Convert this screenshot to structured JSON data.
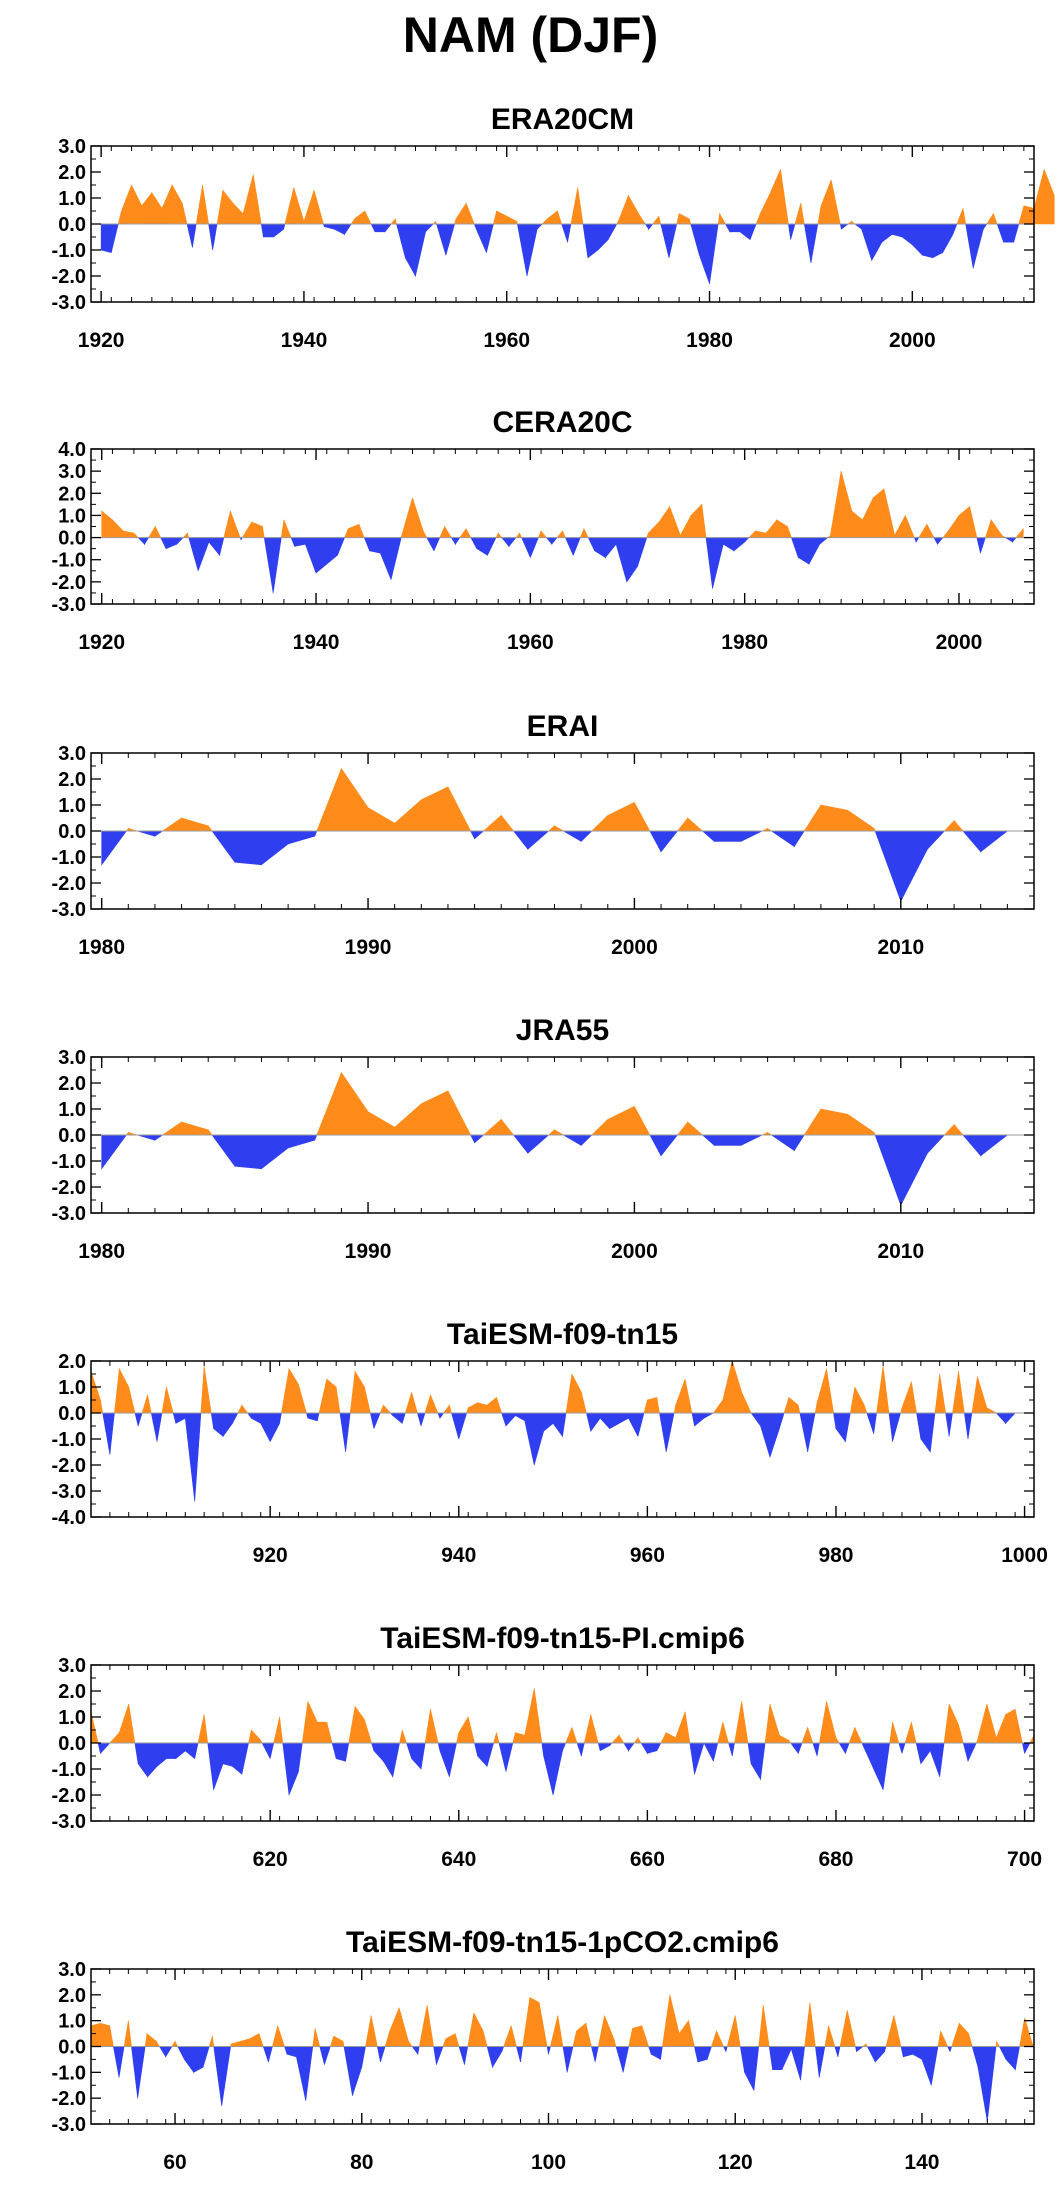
{
  "title": "NAM (DJF)",
  "colors": {
    "positive": "#ff8c1a",
    "negative": "#2f3ff0",
    "axis": "#000000",
    "zero_line": "#9a9a9a"
  },
  "chart_data": [
    {
      "type": "area",
      "title": "ERA20CM",
      "xlabel": "",
      "ylabel": "",
      "xlim": [
        1919,
        2012
      ],
      "ylim": [
        -3,
        3
      ],
      "xticks": [
        1920,
        1940,
        1960,
        1980,
        2000
      ],
      "yticks": [
        "3.0",
        "2.0",
        "1.0",
        "0.0",
        "-1.0",
        "-2.0",
        "-3.0"
      ],
      "x_start": 1920,
      "values": [
        -1.0,
        -1.1,
        0.5,
        1.5,
        0.7,
        1.2,
        0.6,
        1.5,
        0.8,
        -0.9,
        1.5,
        -1.0,
        1.3,
        0.8,
        0.4,
        1.9,
        -0.5,
        -0.5,
        -0.2,
        1.4,
        0.1,
        1.3,
        -0.1,
        -0.2,
        -0.4,
        0.2,
        0.5,
        -0.3,
        -0.3,
        0.2,
        -1.3,
        -2.0,
        -0.3,
        0.1,
        -1.2,
        0.2,
        0.8,
        -0.2,
        -1.1,
        0.5,
        0.3,
        0.1,
        -2.0,
        -0.2,
        0.2,
        0.5,
        -0.7,
        1.4,
        -1.3,
        -1.0,
        -0.6,
        0.1,
        1.1,
        0.4,
        -0.2,
        0.3,
        -1.3,
        0.4,
        0.2,
        -1.2,
        -2.3,
        0.4,
        -0.3,
        -0.3,
        -0.6,
        0.4,
        1.2,
        2.1,
        -0.6,
        0.8,
        -1.5,
        0.7,
        1.7,
        -0.2,
        0.1,
        -0.2,
        -1.4,
        -0.7,
        -0.4,
        -0.5,
        -0.8,
        -1.2,
        -1.3,
        -1.1,
        -0.4,
        0.6,
        -1.7,
        -0.2,
        0.4,
        -0.7,
        -0.7,
        0.7,
        0.6,
        2.1,
        1.1
      ]
    },
    {
      "type": "area",
      "title": "CERA20C",
      "xlabel": "",
      "ylabel": "",
      "xlim": [
        1919,
        2007
      ],
      "ylim": [
        -3,
        4
      ],
      "xticks": [
        1920,
        1940,
        1960,
        1980,
        2000
      ],
      "yticks": [
        "4.0",
        "3.0",
        "2.0",
        "1.0",
        "0.0",
        "-1.0",
        "-2.0",
        "-3.0"
      ],
      "x_start": 1920,
      "values": [
        1.2,
        0.8,
        0.3,
        0.2,
        -0.3,
        0.5,
        -0.5,
        -0.3,
        0.2,
        -1.5,
        -0.2,
        -0.8,
        1.2,
        -0.1,
        0.7,
        0.5,
        -2.5,
        0.8,
        -0.4,
        -0.3,
        -1.6,
        -1.2,
        -0.8,
        0.4,
        0.6,
        -0.6,
        -0.7,
        -1.9,
        0.1,
        1.8,
        0.3,
        -0.6,
        0.5,
        -0.3,
        0.4,
        -0.5,
        -0.8,
        0.2,
        -0.4,
        0.2,
        -0.9,
        0.3,
        -0.3,
        0.3,
        -0.8,
        0.4,
        -0.6,
        -0.9,
        -0.3,
        -2.0,
        -1.3,
        0.2,
        0.7,
        1.4,
        0.1,
        1.0,
        1.5,
        -2.3,
        -0.3,
        -0.6,
        -0.2,
        0.3,
        0.2,
        0.8,
        0.5,
        -0.9,
        -1.2,
        -0.3,
        0.1,
        3.0,
        1.2,
        0.8,
        1.8,
        2.2,
        0.1,
        1.0,
        -0.2,
        0.6,
        -0.3,
        0.3,
        1.0,
        1.4,
        -0.7,
        0.8,
        0.1,
        -0.2,
        0.4
      ]
    },
    {
      "type": "area",
      "title": "ERAI",
      "xlabel": "",
      "ylabel": "",
      "xlim": [
        1979.6,
        2015
      ],
      "ylim": [
        -3,
        3
      ],
      "xticks": [
        1980,
        1990,
        2000,
        2010
      ],
      "yticks": [
        "3.0",
        "2.0",
        "1.0",
        "0.0",
        "-1.0",
        "-2.0",
        "-3.0"
      ],
      "x_start": 1980,
      "values": [
        -1.3,
        0.1,
        -0.2,
        0.5,
        0.2,
        -1.2,
        -1.3,
        -0.5,
        -0.2,
        2.4,
        0.9,
        0.3,
        1.2,
        1.7,
        -0.3,
        0.6,
        -0.7,
        0.2,
        -0.4,
        0.6,
        1.1,
        -0.8,
        0.5,
        -0.4,
        -0.4,
        0.1,
        -0.6,
        1.0,
        0.8,
        0.1,
        -2.7,
        -0.7,
        0.4,
        -0.8,
        0.0
      ]
    },
    {
      "type": "area",
      "title": "JRA55",
      "xlabel": "",
      "ylabel": "",
      "xlim": [
        1979.6,
        2015
      ],
      "ylim": [
        -3,
        3
      ],
      "xticks": [
        1980,
        1990,
        2000,
        2010
      ],
      "yticks": [
        "3.0",
        "2.0",
        "1.0",
        "0.0",
        "-1.0",
        "-2.0",
        "-3.0"
      ],
      "x_start": 1980,
      "values": [
        -1.3,
        0.1,
        -0.2,
        0.5,
        0.2,
        -1.2,
        -1.3,
        -0.5,
        -0.2,
        2.4,
        0.9,
        0.3,
        1.2,
        1.7,
        -0.3,
        0.6,
        -0.7,
        0.2,
        -0.4,
        0.6,
        1.1,
        -0.8,
        0.5,
        -0.4,
        -0.4,
        0.1,
        -0.6,
        1.0,
        0.8,
        0.1,
        -2.7,
        -0.7,
        0.4,
        -0.8,
        0.0
      ]
    },
    {
      "type": "area",
      "title": "TaiESM-f09-tn15",
      "xlabel": "",
      "ylabel": "",
      "xlim": [
        901,
        1001
      ],
      "ylim": [
        -4,
        2
      ],
      "xticks": [
        920,
        940,
        960,
        980,
        1000
      ],
      "yticks": [
        "2.0",
        "1.0",
        "0.0",
        "-1.0",
        "-2.0",
        "-3.0",
        "-4.0"
      ],
      "x_start": 901,
      "values": [
        1.6,
        0.5,
        -1.6,
        1.7,
        1.0,
        -0.5,
        0.7,
        -1.1,
        1.0,
        -0.4,
        -0.2,
        -3.4,
        1.8,
        -0.6,
        -0.9,
        -0.4,
        0.3,
        -0.2,
        -0.4,
        -1.1,
        -0.4,
        1.7,
        1.1,
        -0.2,
        -0.3,
        1.3,
        1.0,
        -1.5,
        1.6,
        1.0,
        -0.6,
        0.3,
        -0.1,
        -0.4,
        0.8,
        -0.5,
        0.7,
        -0.2,
        0.3,
        -1.0,
        0.2,
        0.4,
        0.3,
        0.6,
        -0.5,
        -0.1,
        -0.3,
        -2.0,
        -0.7,
        -0.4,
        -0.9,
        1.5,
        0.8,
        -0.7,
        -0.2,
        -0.6,
        -0.4,
        -0.2,
        -0.9,
        0.5,
        0.6,
        -1.5,
        0.3,
        1.3,
        -0.5,
        -0.2,
        0.0,
        0.5,
        2.0,
        0.8,
        0.0,
        -0.5,
        -1.7,
        -0.6,
        0.6,
        0.3,
        -1.5,
        0.4,
        1.7,
        -0.6,
        -1.1,
        1.0,
        0.3,
        -0.8,
        1.8,
        -1.1,
        0.2,
        1.2,
        -1.0,
        -1.5,
        1.5,
        -0.9,
        1.6,
        -1.0,
        1.4,
        0.2,
        0.0,
        -0.4,
        0.0,
        0.0
      ]
    },
    {
      "type": "area",
      "title": "TaiESM-f09-tn15-PI.cmip6",
      "xlabel": "",
      "ylabel": "",
      "xlim": [
        601,
        701
      ],
      "ylim": [
        -3,
        3
      ],
      "xticks": [
        620,
        640,
        660,
        680,
        700
      ],
      "yticks": [
        "3.0",
        "2.0",
        "1.0",
        "0.0",
        "-1.0",
        "-2.0",
        "-3.0"
      ],
      "x_start": 601,
      "values": [
        1.2,
        -0.4,
        0.0,
        0.4,
        1.5,
        -0.8,
        -1.3,
        -0.9,
        -0.6,
        -0.6,
        -0.3,
        -0.6,
        1.1,
        -1.8,
        -0.8,
        -0.9,
        -1.2,
        0.5,
        0.1,
        -0.6,
        1.0,
        -2.0,
        -1.1,
        1.6,
        0.8,
        0.8,
        -0.6,
        -0.7,
        1.4,
        0.9,
        -0.3,
        -0.7,
        -1.3,
        0.5,
        -0.6,
        -1.0,
        1.3,
        -0.3,
        -1.3,
        0.4,
        1.0,
        -0.5,
        -0.9,
        0.4,
        -1.1,
        0.4,
        0.3,
        2.1,
        -0.5,
        -2.0,
        -0.3,
        0.6,
        -0.5,
        1.1,
        -0.3,
        -0.1,
        0.3,
        -0.3,
        0.2,
        -0.4,
        -0.3,
        0.4,
        0.2,
        1.2,
        -1.2,
        0.0,
        -0.7,
        0.8,
        -0.5,
        1.6,
        -0.8,
        -1.4,
        1.5,
        0.3,
        0.1,
        -0.4,
        0.6,
        -0.5,
        1.6,
        0.2,
        -0.4,
        0.6,
        -0.2,
        -1.0,
        -1.8,
        0.8,
        -0.4,
        0.8,
        -0.8,
        -0.3,
        -1.3,
        1.5,
        0.7,
        -0.7,
        0.1,
        1.5,
        0.2,
        1.1,
        1.3,
        -0.4,
        0.3
      ]
    },
    {
      "type": "area",
      "title": "TaiESM-f09-tn15-1pCO2.cmip6",
      "xlabel": "",
      "ylabel": "",
      "xlim": [
        51,
        152
      ],
      "ylim": [
        -3,
        3
      ],
      "xticks": [
        60,
        80,
        100,
        120,
        140
      ],
      "yticks": [
        "3.0",
        "2.0",
        "1.0",
        "0.0",
        "-1.0",
        "-2.0",
        "-3.0"
      ],
      "x_start": 51,
      "values": [
        0.8,
        0.9,
        0.8,
        -1.2,
        1.0,
        -2.0,
        0.5,
        0.2,
        -0.4,
        0.2,
        -0.5,
        -1.0,
        -0.8,
        0.4,
        -2.3,
        0.1,
        0.2,
        0.3,
        0.5,
        -0.6,
        0.8,
        -0.3,
        -0.4,
        -2.1,
        0.7,
        -0.7,
        0.4,
        0.2,
        -1.9,
        -0.8,
        1.2,
        -0.6,
        0.6,
        1.5,
        0.2,
        -0.3,
        1.6,
        -0.7,
        0.3,
        0.5,
        -0.7,
        1.3,
        0.6,
        -0.8,
        -0.2,
        0.8,
        -0.6,
        1.9,
        1.7,
        -0.3,
        1.2,
        -1.0,
        0.6,
        0.9,
        -0.6,
        1.2,
        0.3,
        -1.0,
        0.7,
        0.8,
        -0.3,
        -0.5,
        2.0,
        0.5,
        1.0,
        -0.6,
        -0.5,
        0.6,
        -0.2,
        1.2,
        -1.0,
        -1.7,
        1.6,
        -0.9,
        -0.9,
        -0.1,
        -1.3,
        1.7,
        -1.2,
        0.8,
        -0.4,
        1.4,
        -0.2,
        0.1,
        -0.6,
        -0.2,
        1.2,
        -0.4,
        -0.3,
        -0.5,
        -1.5,
        0.6,
        -0.2,
        0.9,
        0.5,
        -0.8,
        -2.9,
        0.2,
        -0.5,
        -0.9,
        1.1,
        -0.1
      ]
    }
  ]
}
